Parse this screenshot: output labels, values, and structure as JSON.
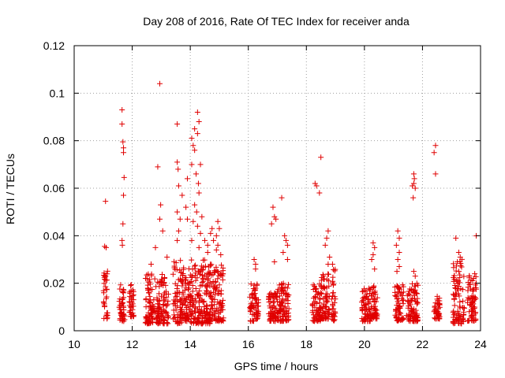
{
  "chart_data": {
    "type": "scatter",
    "title": "Day 208 of 2016, Rate Of TEC Index for receiver anda",
    "xlabel": "GPS time / hours",
    "ylabel": "ROTI / TECUs",
    "xlim": [
      10,
      24
    ],
    "ylim": [
      0,
      0.12
    ],
    "x_ticks": [
      "10",
      "12",
      "14",
      "16",
      "18",
      "20",
      "22",
      "24"
    ],
    "y_ticks": [
      "0",
      "0.02",
      "0.04",
      "0.06",
      "0.08",
      "0.1",
      "0.12"
    ],
    "grid": true,
    "marker": "+",
    "color": "#e00000",
    "clusters": [
      {
        "x": [
          11.0,
          11.15
        ],
        "y": [
          0.005,
          0.026
        ]
      },
      {
        "x": [
          11.55,
          11.75
        ],
        "y": [
          0.004,
          0.02
        ]
      },
      {
        "x": [
          11.9,
          12.05
        ],
        "y": [
          0.006,
          0.02
        ]
      },
      {
        "x": [
          12.45,
          13.25
        ],
        "y": [
          0.003,
          0.024
        ]
      },
      {
        "x": [
          13.4,
          13.7
        ],
        "y": [
          0.003,
          0.03
        ]
      },
      {
        "x": [
          13.7,
          14.05
        ],
        "y": [
          0.004,
          0.028
        ]
      },
      {
        "x": [
          14.0,
          14.7
        ],
        "y": [
          0.003,
          0.03
        ]
      },
      {
        "x": [
          14.55,
          15.15
        ],
        "y": [
          0.004,
          0.028
        ]
      },
      {
        "x": [
          16.05,
          16.35
        ],
        "y": [
          0.004,
          0.02
        ]
      },
      {
        "x": [
          16.7,
          17.0
        ],
        "y": [
          0.004,
          0.016
        ]
      },
      {
        "x": [
          17.0,
          17.4
        ],
        "y": [
          0.004,
          0.02
        ]
      },
      {
        "x": [
          18.2,
          18.5
        ],
        "y": [
          0.004,
          0.02
        ]
      },
      {
        "x": [
          18.5,
          18.8
        ],
        "y": [
          0.005,
          0.024
        ]
      },
      {
        "x": [
          18.85,
          19.0
        ],
        "y": [
          0.004,
          0.026
        ]
      },
      {
        "x": [
          19.9,
          20.2
        ],
        "y": [
          0.004,
          0.018
        ]
      },
      {
        "x": [
          20.2,
          20.45
        ],
        "y": [
          0.005,
          0.02
        ]
      },
      {
        "x": [
          21.05,
          21.35
        ],
        "y": [
          0.004,
          0.02
        ]
      },
      {
        "x": [
          21.45,
          21.85
        ],
        "y": [
          0.004,
          0.02
        ]
      },
      {
        "x": [
          22.4,
          22.6
        ],
        "y": [
          0.005,
          0.015
        ]
      },
      {
        "x": [
          23.05,
          23.45
        ],
        "y": [
          0.003,
          0.032
        ]
      },
      {
        "x": [
          23.55,
          23.85
        ],
        "y": [
          0.004,
          0.024
        ]
      }
    ],
    "points": [
      [
        11.08,
        0.0545
      ],
      [
        11.05,
        0.0355
      ],
      [
        11.1,
        0.035
      ],
      [
        11.65,
        0.093
      ],
      [
        11.65,
        0.087
      ],
      [
        11.68,
        0.0795
      ],
      [
        11.7,
        0.077
      ],
      [
        11.7,
        0.075
      ],
      [
        11.72,
        0.0645
      ],
      [
        11.7,
        0.057
      ],
      [
        11.68,
        0.045
      ],
      [
        11.65,
        0.038
      ],
      [
        11.66,
        0.036
      ],
      [
        12.95,
        0.104
      ],
      [
        12.88,
        0.069
      ],
      [
        12.98,
        0.053
      ],
      [
        12.95,
        0.047
      ],
      [
        13.05,
        0.042
      ],
      [
        13.2,
        0.031
      ],
      [
        12.65,
        0.028
      ],
      [
        12.8,
        0.035
      ],
      [
        13.55,
        0.087
      ],
      [
        13.55,
        0.071
      ],
      [
        13.58,
        0.068
      ],
      [
        13.6,
        0.061
      ],
      [
        13.72,
        0.057
      ],
      [
        13.55,
        0.05
      ],
      [
        13.65,
        0.047
      ],
      [
        13.6,
        0.042
      ],
      [
        13.55,
        0.038
      ],
      [
        13.9,
        0.064
      ],
      [
        13.85,
        0.052
      ],
      [
        13.9,
        0.047
      ],
      [
        14.05,
        0.081
      ],
      [
        14.15,
        0.085
      ],
      [
        14.1,
        0.078
      ],
      [
        14.15,
        0.076
      ],
      [
        14.25,
        0.092
      ],
      [
        14.3,
        0.088
      ],
      [
        14.25,
        0.083
      ],
      [
        14.05,
        0.07
      ],
      [
        14.35,
        0.07
      ],
      [
        14.2,
        0.066
      ],
      [
        14.28,
        0.062
      ],
      [
        14.3,
        0.058
      ],
      [
        14.15,
        0.053
      ],
      [
        14.22,
        0.05
      ],
      [
        14.4,
        0.048
      ],
      [
        14.1,
        0.046
      ],
      [
        14.25,
        0.044
      ],
      [
        14.35,
        0.041
      ],
      [
        14.05,
        0.038
      ],
      [
        14.5,
        0.038
      ],
      [
        14.6,
        0.036
      ],
      [
        14.7,
        0.041
      ],
      [
        14.75,
        0.043
      ],
      [
        14.8,
        0.038
      ],
      [
        14.95,
        0.046
      ],
      [
        15.0,
        0.043
      ],
      [
        14.9,
        0.04
      ],
      [
        14.95,
        0.036
      ],
      [
        14.9,
        0.034
      ],
      [
        15.05,
        0.032
      ],
      [
        14.6,
        0.033
      ],
      [
        14.3,
        0.035
      ],
      [
        16.2,
        0.03
      ],
      [
        16.25,
        0.028
      ],
      [
        16.25,
        0.026
      ],
      [
        16.85,
        0.052
      ],
      [
        16.9,
        0.048
      ],
      [
        16.95,
        0.047
      ],
      [
        16.8,
        0.045
      ],
      [
        16.9,
        0.029
      ],
      [
        17.25,
        0.04
      ],
      [
        17.3,
        0.038
      ],
      [
        17.35,
        0.036
      ],
      [
        17.2,
        0.033
      ],
      [
        17.35,
        0.03
      ],
      [
        17.15,
        0.056
      ],
      [
        18.3,
        0.062
      ],
      [
        18.35,
        0.061
      ],
      [
        18.5,
        0.073
      ],
      [
        18.45,
        0.058
      ],
      [
        18.75,
        0.042
      ],
      [
        18.7,
        0.039
      ],
      [
        18.65,
        0.036
      ],
      [
        18.8,
        0.031
      ],
      [
        18.75,
        0.028
      ],
      [
        18.9,
        0.028
      ],
      [
        20.3,
        0.037
      ],
      [
        20.35,
        0.035
      ],
      [
        20.3,
        0.032
      ],
      [
        20.25,
        0.03
      ],
      [
        20.35,
        0.026
      ],
      [
        21.15,
        0.042
      ],
      [
        21.2,
        0.039
      ],
      [
        21.1,
        0.036
      ],
      [
        21.2,
        0.033
      ],
      [
        21.15,
        0.03
      ],
      [
        21.2,
        0.027
      ],
      [
        21.12,
        0.025
      ],
      [
        21.7,
        0.066
      ],
      [
        21.72,
        0.064
      ],
      [
        21.7,
        0.062
      ],
      [
        21.65,
        0.061
      ],
      [
        21.75,
        0.06
      ],
      [
        21.68,
        0.056
      ],
      [
        21.7,
        0.025
      ],
      [
        21.75,
        0.023
      ],
      [
        22.45,
        0.078
      ],
      [
        22.4,
        0.075
      ],
      [
        22.45,
        0.066
      ],
      [
        23.15,
        0.039
      ],
      [
        23.25,
        0.033
      ],
      [
        23.3,
        0.031
      ],
      [
        23.2,
        0.029
      ],
      [
        23.85,
        0.04
      ],
      [
        23.8,
        0.024
      ],
      [
        23.85,
        0.02
      ]
    ]
  }
}
